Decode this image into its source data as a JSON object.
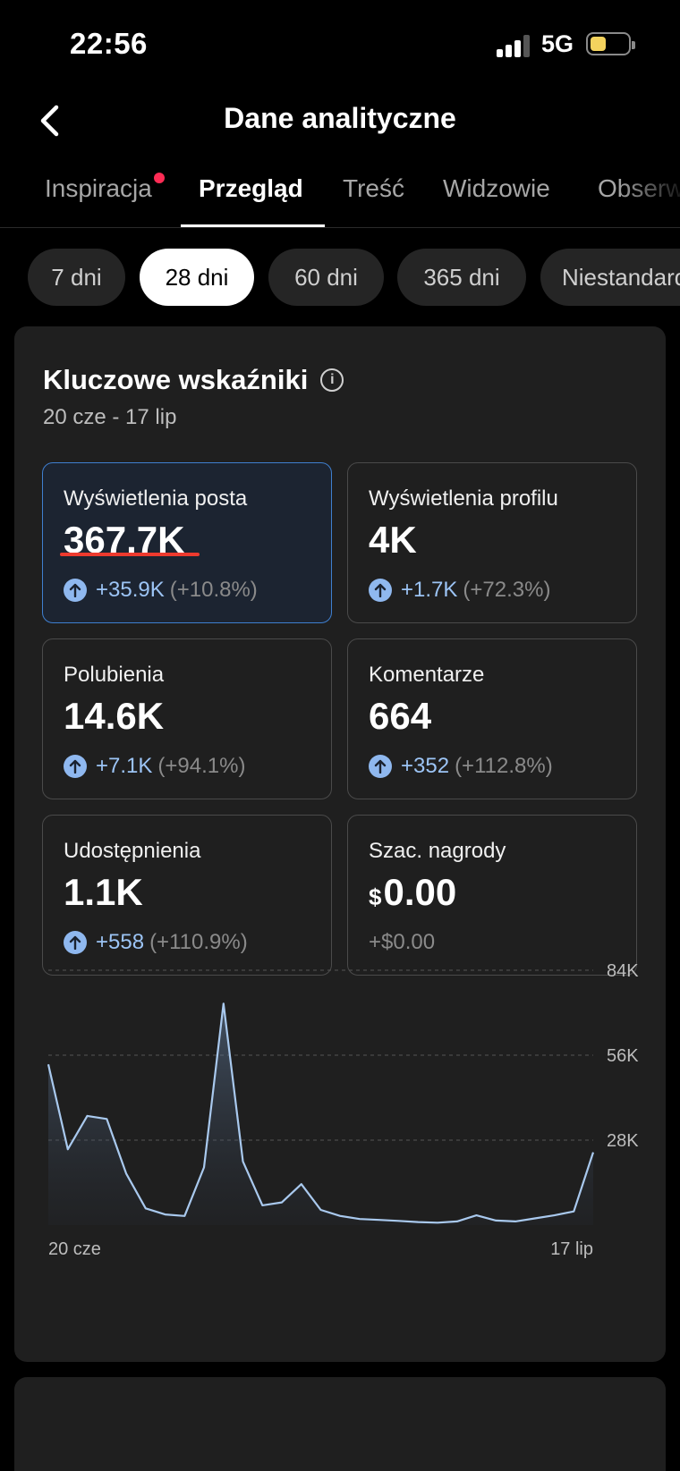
{
  "status": {
    "time": "22:56",
    "network": "5G"
  },
  "header": {
    "title": "Dane analityczne"
  },
  "tabs": [
    {
      "label": "Inspiracja",
      "has_dot": true
    },
    {
      "label": "Przegląd",
      "active": true
    },
    {
      "label": "Treść"
    },
    {
      "label": "Widzowie"
    },
    {
      "label": "Obserwujący"
    }
  ],
  "periods": [
    {
      "label": "7 dni"
    },
    {
      "label": "28 dni",
      "active": true
    },
    {
      "label": "60 dni"
    },
    {
      "label": "365 dni"
    },
    {
      "label": "Niestandardowe"
    }
  ],
  "key_metrics": {
    "title": "Kluczowe wskaźniki",
    "date_range": "20 cze - 17 lip",
    "items": [
      {
        "label": "Wyświetlenia posta",
        "value": "367.7K",
        "delta": "+35.9K",
        "pct": "(+10.8%)"
      },
      {
        "label": "Wyświetlenia profilu",
        "value": "4K",
        "delta": "+1.7K",
        "pct": "(+72.3%)"
      },
      {
        "label": "Polubienia",
        "value": "14.6K",
        "delta": "+7.1K",
        "pct": "(+94.1%)"
      },
      {
        "label": "Komentarze",
        "value": "664",
        "delta": "+352",
        "pct": "(+112.8%)"
      },
      {
        "label": "Udostępnienia",
        "value": "1.1K",
        "delta": "+558",
        "pct": "(+110.9%)"
      },
      {
        "label": "Szac. nagrody",
        "currency": "$",
        "value": "0.00",
        "flat_change": "+$0.00"
      }
    ]
  },
  "chart_data": {
    "type": "area",
    "x_start_label": "20 cze",
    "x_end_label": "17 lip",
    "y_ticks": [
      "84K",
      "56K",
      "28K"
    ],
    "ylim": [
      0,
      84000
    ],
    "values": [
      53000,
      25000,
      36000,
      35000,
      17000,
      5500,
      3500,
      3000,
      19000,
      73000,
      21000,
      6500,
      7500,
      13500,
      5000,
      3000,
      2000,
      1700,
      1400,
      1000,
      800,
      1200,
      3200,
      1500,
      1200,
      2200,
      3200,
      4500,
      24000
    ],
    "line_color": "#a9c9ee"
  }
}
